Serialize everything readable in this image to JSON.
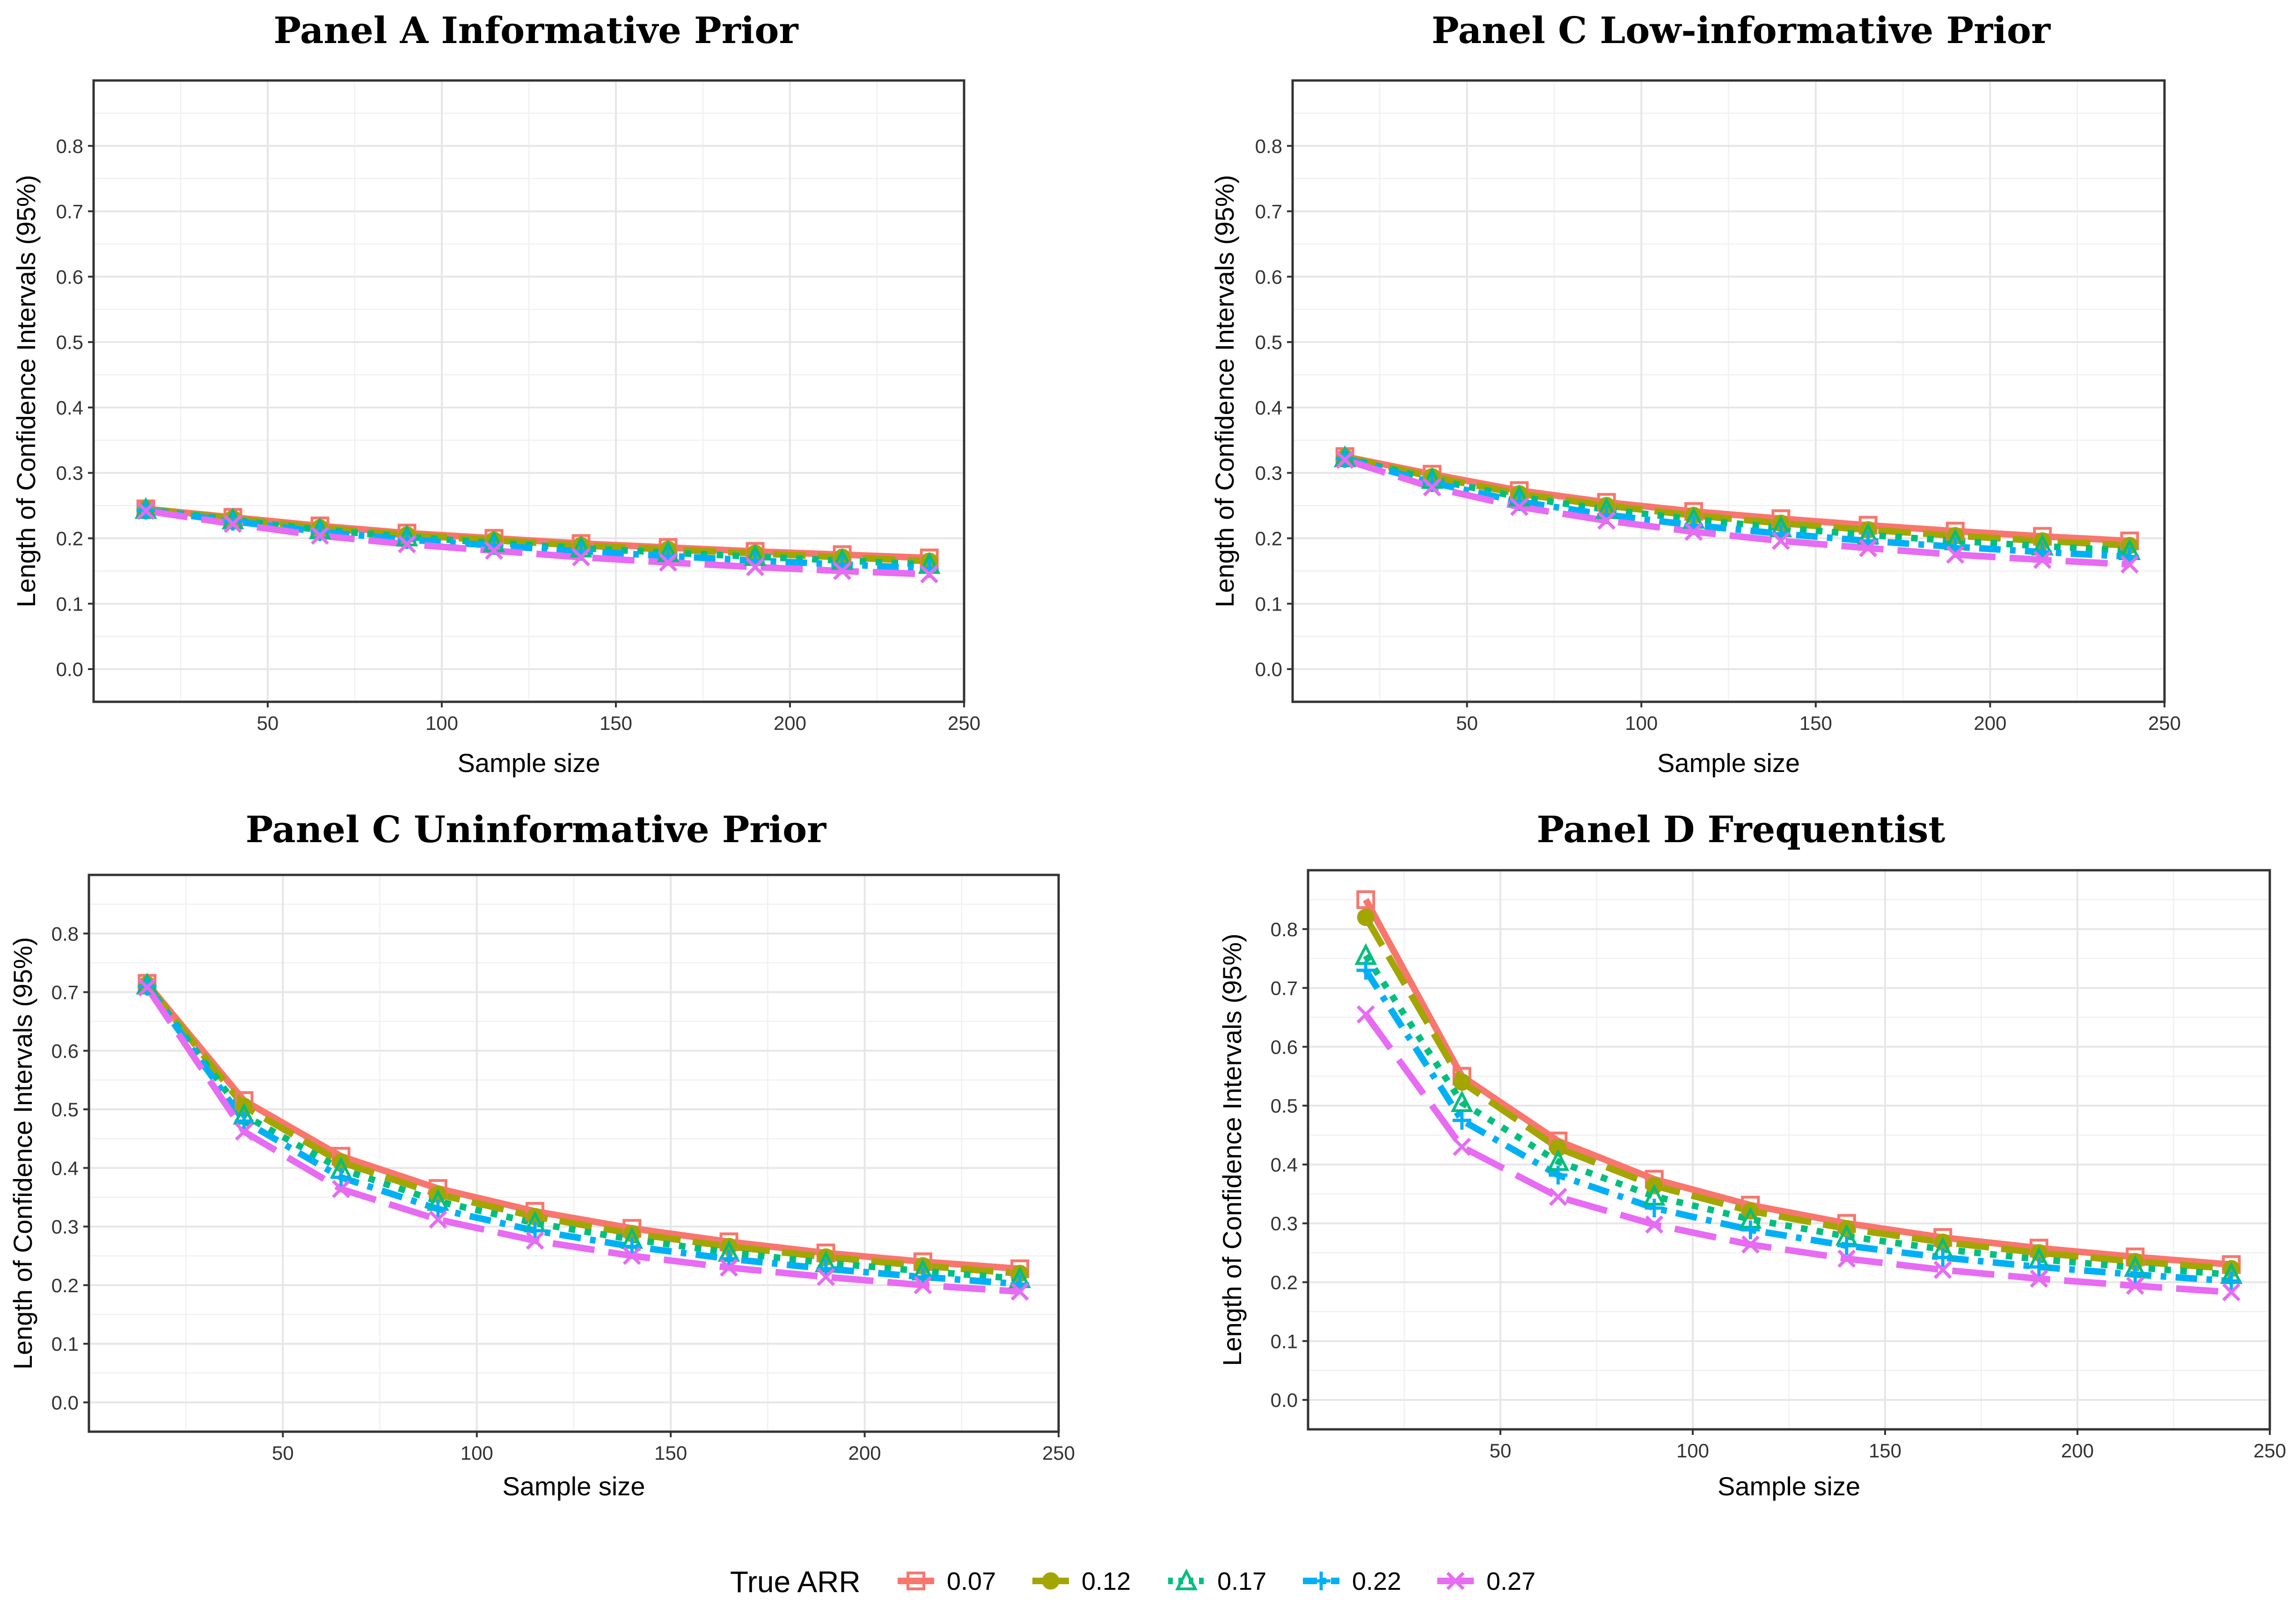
{
  "chart_data": [
    {
      "type": "line",
      "title": "Panel A Informative Prior",
      "xlabel": "Sample size",
      "ylabel": "Length of Confidence Intervals (95%)",
      "xlim": [
        0,
        250
      ],
      "ylim": [
        -0.05,
        0.9
      ],
      "xticks": [
        50,
        100,
        150,
        200,
        250
      ],
      "yticks": [
        0.0,
        0.1,
        0.2,
        0.3,
        0.4,
        0.5,
        0.6,
        0.7,
        0.8
      ],
      "x": [
        15,
        40,
        65,
        90,
        115,
        140,
        165,
        190,
        215,
        240
      ],
      "series": [
        {
          "name": "0.07",
          "values": [
            0.245,
            0.232,
            0.219,
            0.208,
            0.2,
            0.192,
            0.186,
            0.18,
            0.175,
            0.17
          ]
        },
        {
          "name": "0.12",
          "values": [
            0.245,
            0.23,
            0.216,
            0.205,
            0.197,
            0.189,
            0.183,
            0.177,
            0.171,
            0.165
          ]
        },
        {
          "name": "0.17",
          "values": [
            0.244,
            0.228,
            0.213,
            0.202,
            0.193,
            0.185,
            0.178,
            0.172,
            0.166,
            0.16
          ]
        },
        {
          "name": "0.22",
          "values": [
            0.243,
            0.226,
            0.21,
            0.198,
            0.189,
            0.18,
            0.173,
            0.166,
            0.16,
            0.154
          ]
        },
        {
          "name": "0.27",
          "values": [
            0.242,
            0.222,
            0.204,
            0.191,
            0.181,
            0.171,
            0.163,
            0.156,
            0.15,
            0.145
          ]
        }
      ]
    },
    {
      "type": "line",
      "title": "Panel C Low-informative Prior",
      "xlabel": "Sample size",
      "ylabel": "Length of Confidence Intervals (95%)",
      "xlim": [
        0,
        250
      ],
      "ylim": [
        -0.05,
        0.9
      ],
      "xticks": [
        50,
        100,
        150,
        200,
        250
      ],
      "yticks": [
        0.0,
        0.1,
        0.2,
        0.3,
        0.4,
        0.5,
        0.6,
        0.7,
        0.8
      ],
      "x": [
        15,
        40,
        65,
        90,
        115,
        140,
        165,
        190,
        215,
        240
      ],
      "series": [
        {
          "name": "0.07",
          "values": [
            0.325,
            0.298,
            0.273,
            0.255,
            0.241,
            0.23,
            0.22,
            0.211,
            0.203,
            0.196
          ]
        },
        {
          "name": "0.12",
          "values": [
            0.324,
            0.294,
            0.268,
            0.25,
            0.235,
            0.223,
            0.213,
            0.204,
            0.196,
            0.189
          ]
        },
        {
          "name": "0.17",
          "values": [
            0.323,
            0.29,
            0.263,
            0.244,
            0.229,
            0.216,
            0.205,
            0.196,
            0.188,
            0.181
          ]
        },
        {
          "name": "0.22",
          "values": [
            0.322,
            0.285,
            0.256,
            0.236,
            0.22,
            0.207,
            0.196,
            0.187,
            0.179,
            0.172
          ]
        },
        {
          "name": "0.27",
          "values": [
            0.32,
            0.278,
            0.248,
            0.227,
            0.21,
            0.196,
            0.185,
            0.175,
            0.167,
            0.16
          ]
        }
      ]
    },
    {
      "type": "line",
      "title": "Panel C Uninformative Prior",
      "xlabel": "Sample size",
      "ylabel": "Length of Confidence Intervals (95%)",
      "xlim": [
        0,
        250
      ],
      "ylim": [
        -0.05,
        0.9
      ],
      "xticks": [
        50,
        100,
        150,
        200,
        250
      ],
      "yticks": [
        0.0,
        0.1,
        0.2,
        0.3,
        0.4,
        0.5,
        0.6,
        0.7,
        0.8
      ],
      "x": [
        15,
        40,
        65,
        90,
        115,
        140,
        165,
        190,
        215,
        240
      ],
      "series": [
        {
          "name": "0.07",
          "values": [
            0.715,
            0.515,
            0.42,
            0.365,
            0.326,
            0.297,
            0.274,
            0.255,
            0.24,
            0.228
          ]
        },
        {
          "name": "0.12",
          "values": [
            0.713,
            0.505,
            0.41,
            0.355,
            0.317,
            0.288,
            0.266,
            0.248,
            0.233,
            0.22
          ]
        },
        {
          "name": "0.17",
          "values": [
            0.712,
            0.49,
            0.398,
            0.343,
            0.306,
            0.278,
            0.256,
            0.238,
            0.224,
            0.211
          ]
        },
        {
          "name": "0.22",
          "values": [
            0.71,
            0.48,
            0.384,
            0.33,
            0.293,
            0.266,
            0.245,
            0.228,
            0.214,
            0.202
          ]
        },
        {
          "name": "0.27",
          "values": [
            0.708,
            0.462,
            0.364,
            0.312,
            0.276,
            0.25,
            0.23,
            0.214,
            0.2,
            0.189
          ]
        }
      ]
    },
    {
      "type": "line",
      "title": "Panel D Frequentist",
      "xlabel": "Sample size",
      "ylabel": "Length of Confidence Intervals (95%)",
      "xlim": [
        0,
        250
      ],
      "ylim": [
        -0.05,
        0.9
      ],
      "xticks": [
        50,
        100,
        150,
        200,
        250
      ],
      "yticks": [
        0.0,
        0.1,
        0.2,
        0.3,
        0.4,
        0.5,
        0.6,
        0.7,
        0.8
      ],
      "x": [
        15,
        40,
        65,
        90,
        115,
        140,
        165,
        190,
        215,
        240
      ],
      "series": [
        {
          "name": "0.07",
          "values": [
            0.85,
            0.55,
            0.44,
            0.375,
            0.331,
            0.3,
            0.276,
            0.258,
            0.243,
            0.23
          ]
        },
        {
          "name": "0.12",
          "values": [
            0.82,
            0.54,
            0.428,
            0.364,
            0.321,
            0.291,
            0.268,
            0.25,
            0.235,
            0.223
          ]
        },
        {
          "name": "0.17",
          "values": [
            0.755,
            0.505,
            0.405,
            0.346,
            0.307,
            0.278,
            0.256,
            0.239,
            0.225,
            0.213
          ]
        },
        {
          "name": "0.22",
          "values": [
            0.73,
            0.475,
            0.382,
            0.326,
            0.289,
            0.262,
            0.242,
            0.226,
            0.213,
            0.202
          ]
        },
        {
          "name": "0.27",
          "values": [
            0.655,
            0.43,
            0.345,
            0.298,
            0.264,
            0.24,
            0.221,
            0.206,
            0.194,
            0.183
          ]
        }
      ]
    }
  ],
  "legend": {
    "title": "True ARR",
    "items": [
      {
        "label": "0.07",
        "color": "#F8766D"
      },
      {
        "label": "0.12",
        "color": "#A3A500"
      },
      {
        "label": "0.17",
        "color": "#00BF7D"
      },
      {
        "label": "0.22",
        "color": "#00B0F6"
      },
      {
        "label": "0.27",
        "color": "#E76BF3"
      }
    ]
  }
}
